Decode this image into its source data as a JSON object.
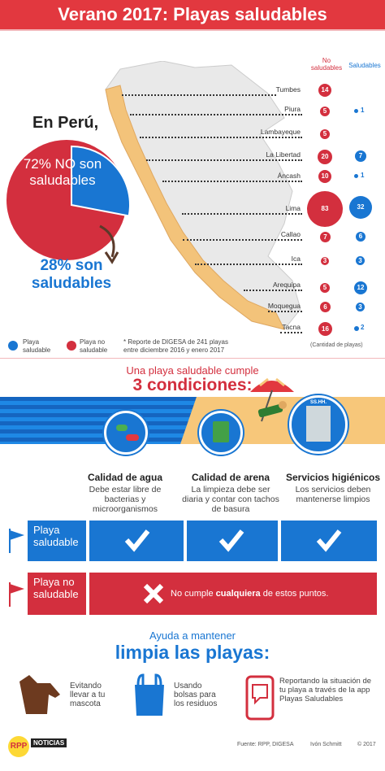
{
  "header": {
    "title": "Verano 2017: Playas saludables"
  },
  "columns": {
    "no_saludables": "No\nsaludables",
    "saludables": "Saludables"
  },
  "regions": [
    {
      "name": "Tumbes",
      "no": "14",
      "si": ""
    },
    {
      "name": "Piura",
      "no": "5",
      "si": "1"
    },
    {
      "name": "Lambayeque",
      "no": "5",
      "si": ""
    },
    {
      "name": "La Libertad",
      "no": "20",
      "si": "7"
    },
    {
      "name": "Áncash",
      "no": "10",
      "si": "1"
    },
    {
      "name": "Lima",
      "no": "83",
      "si": "32"
    },
    {
      "name": "Callao",
      "no": "7",
      "si": "6"
    },
    {
      "name": "Ica",
      "no": "3",
      "si": "3"
    },
    {
      "name": "Arequipa",
      "no": "5",
      "si": "12"
    },
    {
      "name": "Moquegua",
      "no": "6",
      "si": "3"
    },
    {
      "name": "Tacna",
      "no": "16",
      "si": "2"
    }
  ],
  "cantidad_label": "(Cantidad de playas)",
  "pie": {
    "heading": "En Perú,",
    "no_label": "72% NO son saludables",
    "si_label": "28% son saludables",
    "no_pct": 72,
    "si_pct": 28
  },
  "legend": {
    "saludable": "Playa saludable",
    "no_saludable": "Playa no saludable",
    "report": "* Reporte de DIGESA de 241 playas entre diciembre 2016 y enero 2017"
  },
  "conditions_intro": {
    "line1": "Una playa saludable cumple",
    "line2": "3 condiciones:"
  },
  "sign_text": "SS.HH.",
  "conditions": [
    {
      "title": "Calidad de agua",
      "desc": "Debe estar libre de bacterias y microorganismos"
    },
    {
      "title": "Calidad de arena",
      "desc": "La limpieza debe ser diaria y contar con tachos de basura"
    },
    {
      "title": "Servicios higiénicos",
      "desc": "Los servicios deben mantenerse limpios"
    }
  ],
  "rows": {
    "saludable": "Playa saludable",
    "no_saludable": "Playa no saludable",
    "no_cumple_pre": "No cumple ",
    "no_cumple_bold": "cualquiera",
    "no_cumple_post": " de estos puntos."
  },
  "help": {
    "line1": "Ayuda a mantener",
    "line2": "limpia las playas:"
  },
  "tips": [
    {
      "text": "Evitando llevar a tu mascota"
    },
    {
      "text": "Usando bolsas para los residuos"
    },
    {
      "text": "Reportando la situación de tu playa a través de la app Playas Saludables"
    }
  ],
  "footer": {
    "logo": "RPP",
    "logo_sub": "NOTICIAS",
    "source": "Fuente: RPP, DIGESA",
    "author": "Ivón Schmitt",
    "year": "© 2017"
  },
  "colors": {
    "red": "#d32f3e",
    "blue": "#1976d2",
    "sand": "#f3c37a"
  }
}
